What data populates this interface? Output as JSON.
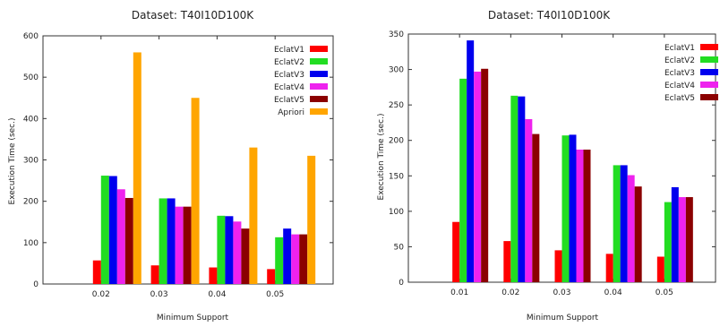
{
  "chart_data": [
    {
      "type": "bar",
      "title": "Dataset: T40I10D100K",
      "xlabel": "Minimum Support",
      "ylabel": "Execution Time (sec.)",
      "ylim": [
        0,
        600
      ],
      "yticks": [
        "0",
        "100",
        "200",
        "300",
        "400",
        "500",
        "600"
      ],
      "categories": [
        "0.02",
        "0.03",
        "0.04",
        "0.05"
      ],
      "legend_position": "top-right",
      "grid": false,
      "series": [
        {
          "name": "EclatV1",
          "color": "#ff0000",
          "values": [
            57,
            45,
            40,
            36
          ]
        },
        {
          "name": "EclatV2",
          "color": "#22dd22",
          "values": [
            262,
            207,
            165,
            113
          ]
        },
        {
          "name": "EclatV3",
          "color": "#0000ee",
          "values": [
            261,
            207,
            164,
            134
          ]
        },
        {
          "name": "EclatV4",
          "color": "#ee22ee",
          "values": [
            229,
            187,
            151,
            120
          ]
        },
        {
          "name": "EclatV5",
          "color": "#8b0000",
          "values": [
            208,
            187,
            134,
            120
          ]
        },
        {
          "name": "Apriori",
          "color": "#ffa500",
          "values": [
            560,
            450,
            330,
            310
          ]
        }
      ]
    },
    {
      "type": "bar",
      "title": "Dataset: T40I10D100K",
      "xlabel": "Minimum Support",
      "ylabel": "Execution Time (sec.)",
      "ylim": [
        0,
        350
      ],
      "yticks": [
        "0",
        "50",
        "100",
        "150",
        "200",
        "250",
        "300",
        "350"
      ],
      "categories": [
        "0.01",
        "0.02",
        "0.03",
        "0.04",
        "0.05"
      ],
      "legend_position": "top-right",
      "grid": false,
      "series": [
        {
          "name": "EclatV1",
          "color": "#ff0000",
          "values": [
            85,
            58,
            45,
            40,
            36
          ]
        },
        {
          "name": "EclatV2",
          "color": "#22dd22",
          "values": [
            287,
            263,
            207,
            165,
            113
          ]
        },
        {
          "name": "EclatV3",
          "color": "#0000ee",
          "values": [
            341,
            262,
            208,
            165,
            134
          ]
        },
        {
          "name": "EclatV4",
          "color": "#ee22ee",
          "values": [
            297,
            230,
            187,
            151,
            120
          ]
        },
        {
          "name": "EclatV5",
          "color": "#8b0000",
          "values": [
            301,
            209,
            187,
            135,
            120
          ]
        }
      ]
    }
  ]
}
